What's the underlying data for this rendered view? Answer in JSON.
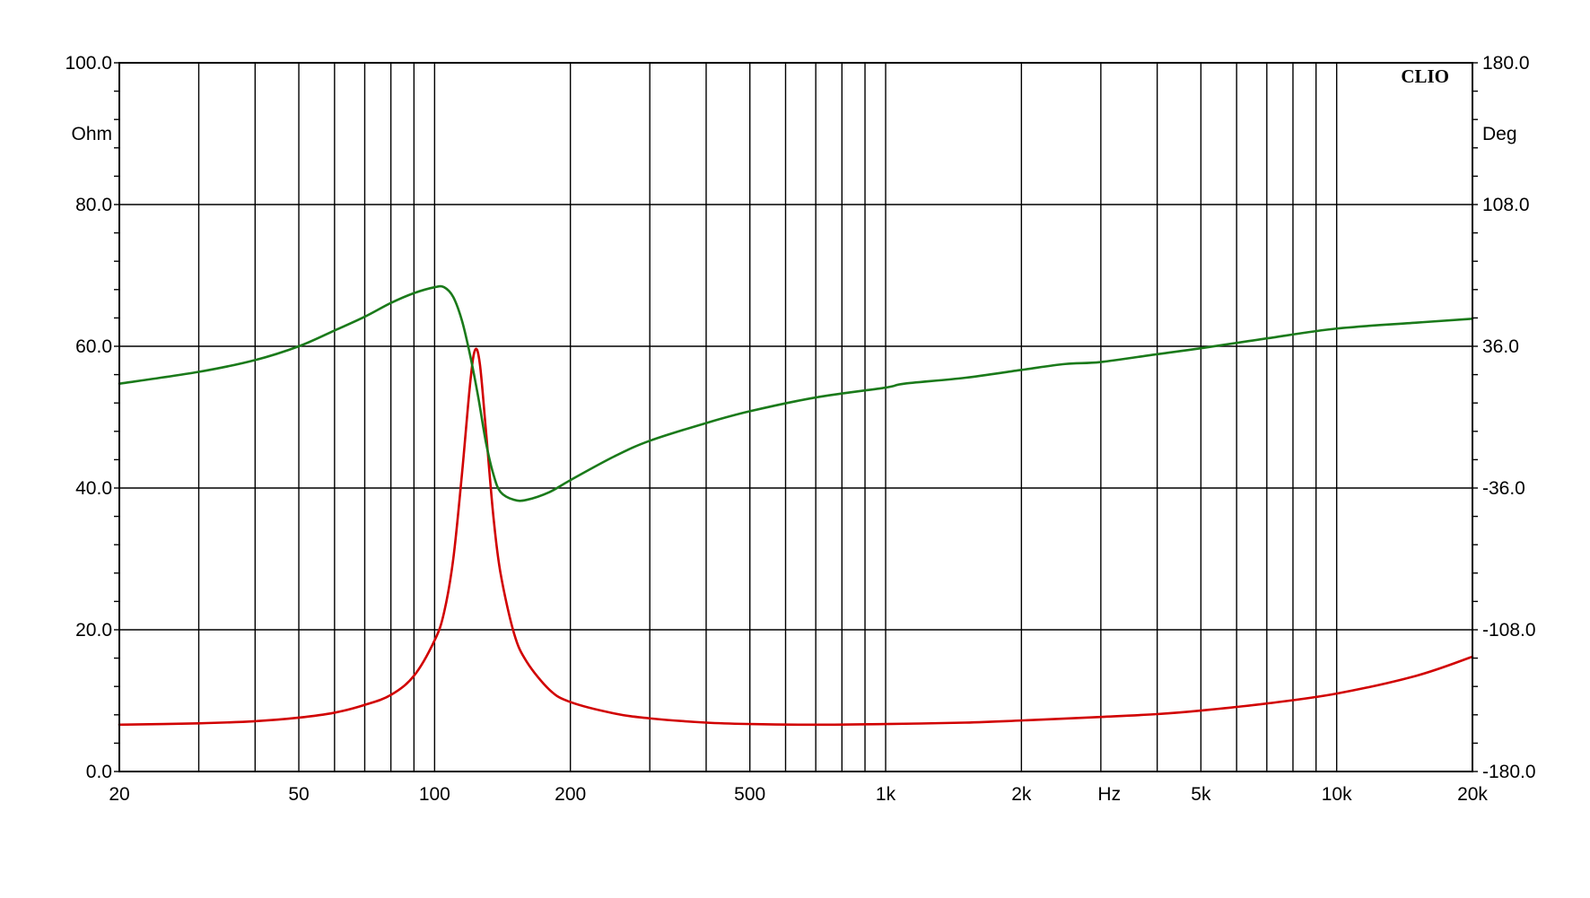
{
  "chart_data": {
    "type": "line",
    "brand": "CLIO",
    "x_scale": "log",
    "xlim": [
      20,
      20000
    ],
    "x_unit_label": "Hz",
    "x_ticks": [
      {
        "value": 20,
        "label": "20"
      },
      {
        "value": 50,
        "label": "50"
      },
      {
        "value": 100,
        "label": "100"
      },
      {
        "value": 200,
        "label": "200"
      },
      {
        "value": 500,
        "label": "500"
      },
      {
        "value": 1000,
        "label": "1k"
      },
      {
        "value": 2000,
        "label": "2k"
      },
      {
        "value": 5000,
        "label": "5k"
      },
      {
        "value": 10000,
        "label": "10k"
      },
      {
        "value": 20000,
        "label": "20k"
      }
    ],
    "x_grid": [
      30,
      40,
      50,
      60,
      70,
      80,
      90,
      100,
      200,
      300,
      400,
      500,
      600,
      700,
      800,
      900,
      1000,
      2000,
      3000,
      4000,
      5000,
      6000,
      7000,
      8000,
      9000,
      10000,
      20000
    ],
    "y_left": {
      "unit": "Ohm",
      "ylim": [
        0,
        100
      ],
      "ticks": [
        {
          "value": 0,
          "label": "0.0"
        },
        {
          "value": 20,
          "label": "20.0"
        },
        {
          "value": 40,
          "label": "40.0"
        },
        {
          "value": 60,
          "label": "60.0"
        },
        {
          "value": 80,
          "label": "80.0"
        },
        {
          "value": 100,
          "label": "100.0"
        }
      ]
    },
    "y_right": {
      "unit": "Deg",
      "ylim": [
        -180,
        180
      ],
      "ticks": [
        {
          "value": -180,
          "label": "-180.0"
        },
        {
          "value": -108,
          "label": "-108.0"
        },
        {
          "value": -36,
          "label": "-36.0"
        },
        {
          "value": 36,
          "label": "36.0"
        },
        {
          "value": 108,
          "label": "108.0"
        },
        {
          "value": 180,
          "label": "180.0"
        }
      ]
    },
    "grid": true,
    "series": [
      {
        "axis": "left",
        "color": "#d10000",
        "points": [
          [
            20,
            6.6
          ],
          [
            30,
            6.8
          ],
          [
            40,
            7.1
          ],
          [
            50,
            7.6
          ],
          [
            60,
            8.3
          ],
          [
            70,
            9.4
          ],
          [
            80,
            10.8
          ],
          [
            90,
            13.5
          ],
          [
            100,
            18.5
          ],
          [
            105,
            22.5
          ],
          [
            110,
            30.0
          ],
          [
            115,
            42.0
          ],
          [
            120,
            55.0
          ],
          [
            123,
            59.5
          ],
          [
            126,
            57.5
          ],
          [
            130,
            48.0
          ],
          [
            135,
            36.0
          ],
          [
            140,
            28.0
          ],
          [
            150,
            19.5
          ],
          [
            160,
            15.5
          ],
          [
            180,
            11.5
          ],
          [
            200,
            9.8
          ],
          [
            250,
            8.2
          ],
          [
            300,
            7.5
          ],
          [
            400,
            6.9
          ],
          [
            500,
            6.7
          ],
          [
            700,
            6.6
          ],
          [
            1000,
            6.7
          ],
          [
            1500,
            6.9
          ],
          [
            2000,
            7.2
          ],
          [
            3000,
            7.7
          ],
          [
            4000,
            8.1
          ],
          [
            5000,
            8.6
          ],
          [
            7000,
            9.6
          ],
          [
            10000,
            11.0
          ],
          [
            15000,
            13.5
          ],
          [
            20000,
            16.2
          ]
        ]
      },
      {
        "axis": "right",
        "color": "#1a7a1a",
        "points": [
          [
            20,
            17
          ],
          [
            30,
            23
          ],
          [
            40,
            29
          ],
          [
            50,
            36
          ],
          [
            60,
            44
          ],
          [
            70,
            51
          ],
          [
            80,
            58
          ],
          [
            90,
            63
          ],
          [
            100,
            66
          ],
          [
            105,
            66
          ],
          [
            110,
            61
          ],
          [
            115,
            49
          ],
          [
            120,
            31
          ],
          [
            125,
            10
          ],
          [
            130,
            -13
          ],
          [
            135,
            -29
          ],
          [
            140,
            -38
          ],
          [
            150,
            -42
          ],
          [
            160,
            -42
          ],
          [
            180,
            -38
          ],
          [
            200,
            -32
          ],
          [
            250,
            -20
          ],
          [
            300,
            -12
          ],
          [
            400,
            -3
          ],
          [
            500,
            3
          ],
          [
            700,
            10
          ],
          [
            1000,
            15
          ],
          [
            1100,
            17
          ],
          [
            1500,
            20
          ],
          [
            2000,
            24
          ],
          [
            2500,
            27
          ],
          [
            3000,
            28
          ],
          [
            4000,
            32
          ],
          [
            5000,
            35
          ],
          [
            7000,
            40
          ],
          [
            10000,
            45
          ],
          [
            15000,
            48
          ],
          [
            20000,
            50
          ]
        ]
      }
    ]
  }
}
